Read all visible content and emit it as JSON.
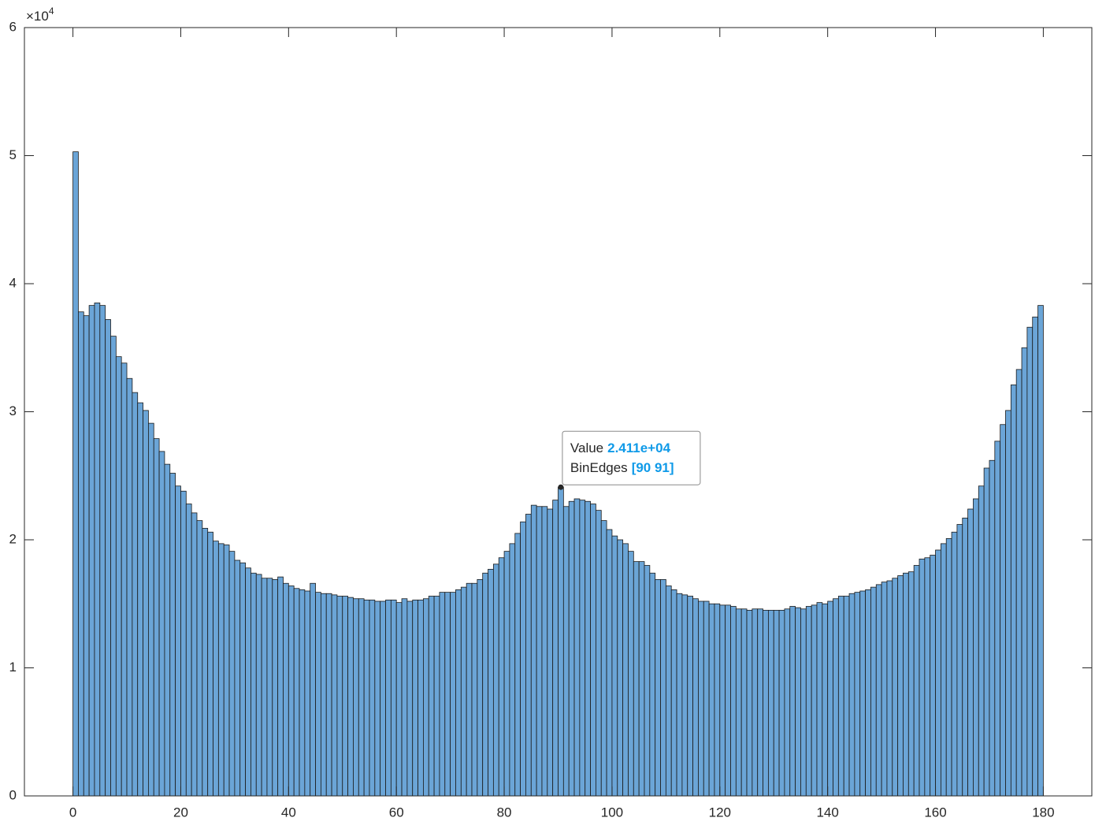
{
  "chart_data": {
    "type": "histogram",
    "bins": [
      0,
      1,
      2,
      3,
      4,
      5,
      6,
      7,
      8,
      9,
      10,
      11,
      12,
      13,
      14,
      15,
      16,
      17,
      18,
      19,
      20,
      21,
      22,
      23,
      24,
      25,
      26,
      27,
      28,
      29,
      30,
      31,
      32,
      33,
      34,
      35,
      36,
      37,
      38,
      39,
      40,
      41,
      42,
      43,
      44,
      45,
      46,
      47,
      48,
      49,
      50,
      51,
      52,
      53,
      54,
      55,
      56,
      57,
      58,
      59,
      60,
      61,
      62,
      63,
      64,
      65,
      66,
      67,
      68,
      69,
      70,
      71,
      72,
      73,
      74,
      75,
      76,
      77,
      78,
      79,
      80,
      81,
      82,
      83,
      84,
      85,
      86,
      87,
      88,
      89,
      90,
      91,
      92,
      93,
      94,
      95,
      96,
      97,
      98,
      99,
      100,
      101,
      102,
      103,
      104,
      105,
      106,
      107,
      108,
      109,
      110,
      111,
      112,
      113,
      114,
      115,
      116,
      117,
      118,
      119,
      120,
      121,
      122,
      123,
      124,
      125,
      126,
      127,
      128,
      129,
      130,
      131,
      132,
      133,
      134,
      135,
      136,
      137,
      138,
      139,
      140,
      141,
      142,
      143,
      144,
      145,
      146,
      147,
      148,
      149,
      150,
      151,
      152,
      153,
      154,
      155,
      156,
      157,
      158,
      159,
      160,
      161,
      162,
      163,
      164,
      165,
      166,
      167,
      168,
      169,
      170,
      171,
      172,
      173,
      174,
      175,
      176,
      177,
      178,
      179,
      180
    ],
    "values": [
      50300,
      37800,
      37500,
      38300,
      38500,
      38300,
      37200,
      35900,
      34300,
      33800,
      32600,
      31500,
      30700,
      30100,
      29100,
      27900,
      26900,
      25900,
      25200,
      24200,
      23800,
      22800,
      22100,
      21500,
      20900,
      20600,
      19900,
      19700,
      19600,
      19100,
      18400,
      18200,
      17800,
      17400,
      17300,
      17000,
      17000,
      16900,
      17100,
      16600,
      16400,
      16200,
      16100,
      16000,
      16600,
      15900,
      15800,
      15800,
      15700,
      15600,
      15600,
      15500,
      15400,
      15400,
      15300,
      15300,
      15200,
      15200,
      15300,
      15300,
      15100,
      15400,
      15200,
      15300,
      15300,
      15400,
      15600,
      15600,
      15900,
      15900,
      15900,
      16100,
      16300,
      16600,
      16600,
      16900,
      17400,
      17700,
      18100,
      18600,
      19100,
      19700,
      20500,
      21400,
      22000,
      22700,
      22600,
      22600,
      22400,
      23100,
      24110,
      22600,
      23000,
      23200,
      23100,
      23000,
      22800,
      22300,
      21500,
      20800,
      20300,
      20000,
      19700,
      19100,
      18300,
      18300,
      18000,
      17400,
      16900,
      16900,
      16400,
      16100,
      15800,
      15700,
      15600,
      15400,
      15200,
      15200,
      15000,
      15000,
      14900,
      14900,
      14800,
      14600,
      14600,
      14500,
      14600,
      14600,
      14500,
      14500,
      14500,
      14500,
      14600,
      14800,
      14700,
      14600,
      14800,
      14900,
      15100,
      15000,
      15200,
      15400,
      15600,
      15600,
      15800,
      15900,
      16000,
      16100,
      16300,
      16500,
      16700,
      16800,
      17000,
      17200,
      17400,
      17500,
      18000,
      18500,
      18600,
      18800,
      19200,
      19700,
      20100,
      20600,
      21200,
      21700,
      22400,
      23200,
      24200,
      25600,
      26200,
      27700,
      29000,
      30100,
      32100,
      33300,
      35000,
      36600,
      37400,
      38300
    ],
    "color": "#6ba5d7",
    "edge_color": "#1a1a1a",
    "xlim": [
      -9,
      189
    ],
    "xticks": [
      0,
      20,
      40,
      60,
      80,
      100,
      120,
      140,
      160,
      180
    ],
    "ylim": [
      0,
      60000
    ],
    "yticks": [
      0,
      {
        "value": 10000,
        "label": "1"
      },
      {
        "value": 20000,
        "label": "2"
      },
      {
        "value": 30000,
        "label": "3"
      },
      {
        "value": 40000,
        "label": "4"
      },
      {
        "value": 50000,
        "label": "5"
      },
      {
        "value": 60000,
        "label": "6"
      }
    ],
    "y_multiplier": {
      "base": "×10",
      "exponent": "4"
    },
    "datatip": {
      "value_name": "Value",
      "value": 24110,
      "value_label": "2.411e+04",
      "edges_name": "BinEdges",
      "bin_edges": [
        90,
        91
      ],
      "bin_edges_label": "[90 91]"
    }
  }
}
